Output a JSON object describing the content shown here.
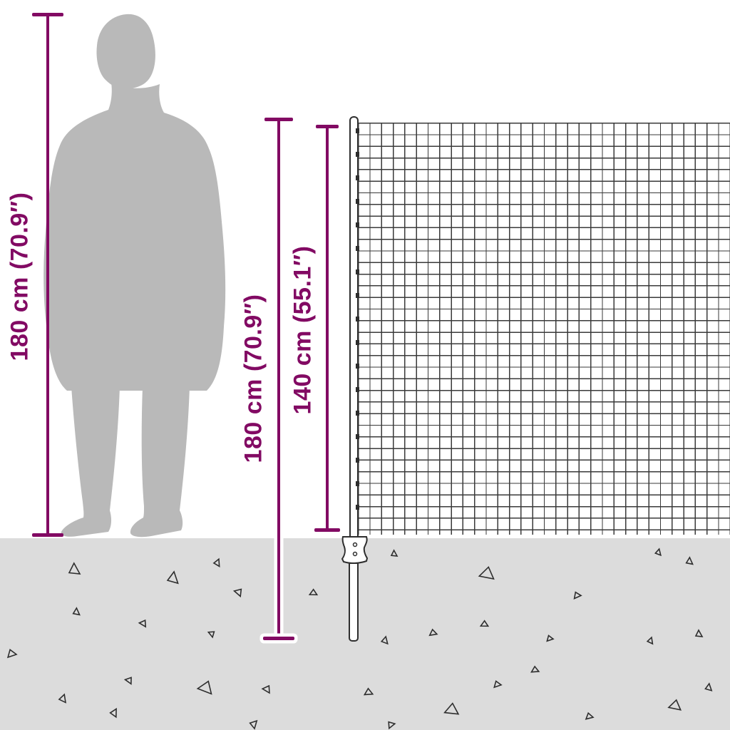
{
  "diagram": {
    "kind": "product-dimension-diagram",
    "subject": "wire mesh fence with ground post next to human silhouette for scale"
  },
  "colors": {
    "accent": "#820a63",
    "silhouette": "#b9b9b9",
    "ground": "#dcdcdc",
    "wire": "#3a3a3a",
    "outline": "#2e2e2e",
    "halo": "#ffffff",
    "bg": "#ffffff"
  },
  "dimensions": {
    "person_height": {
      "label": "180 cm (70.9″)"
    },
    "post_total_height": {
      "label": "180 cm (70.9″)"
    },
    "fence_height": {
      "label": "140 cm (55.1″)"
    }
  },
  "ground": {
    "texture": "scattered-triangle-gravel-marks",
    "triangles": [
      [
        97,
        790,
        15,
        0
      ],
      [
        236,
        802,
        15,
        10
      ],
      [
        301,
        784,
        9,
        25
      ],
      [
        330,
        827,
        10,
        160
      ],
      [
        103,
        853,
        9,
        5
      ],
      [
        197,
        871,
        9,
        150
      ],
      [
        293,
        886,
        8,
        170
      ],
      [
        12,
        912,
        11,
        100
      ],
      [
        177,
        951,
        9,
        155
      ],
      [
        84,
        974,
        10,
        20
      ],
      [
        156,
        994,
        10,
        30
      ],
      [
        281,
        958,
        18,
        140
      ],
      [
        370,
        963,
        10,
        150
      ],
      [
        436,
        828,
        9,
        120
      ],
      [
        549,
        772,
        8,
        0
      ],
      [
        676,
        798,
        18,
        130
      ],
      [
        806,
        831,
        9,
        95
      ],
      [
        676,
        872,
        9,
        120
      ],
      [
        604,
        884,
        9,
        110
      ],
      [
        536,
        893,
        9,
        15
      ],
      [
        768,
        892,
        8,
        100
      ],
      [
        909,
        894,
        8,
        20
      ],
      [
        976,
        884,
        9,
        0
      ],
      [
        747,
        936,
        9,
        115
      ],
      [
        694,
        956,
        9,
        100
      ],
      [
        627,
        989,
        17,
        125
      ],
      [
        823,
        1001,
        9,
        105
      ],
      [
        941,
        984,
        15,
        130
      ],
      [
        990,
        959,
        9,
        10
      ],
      [
        920,
        770,
        8,
        15
      ],
      [
        963,
        782,
        9,
        5
      ],
      [
        513,
        967,
        10,
        115
      ],
      [
        352,
        1010,
        10,
        45
      ],
      [
        545,
        1012,
        9,
        80
      ]
    ]
  }
}
